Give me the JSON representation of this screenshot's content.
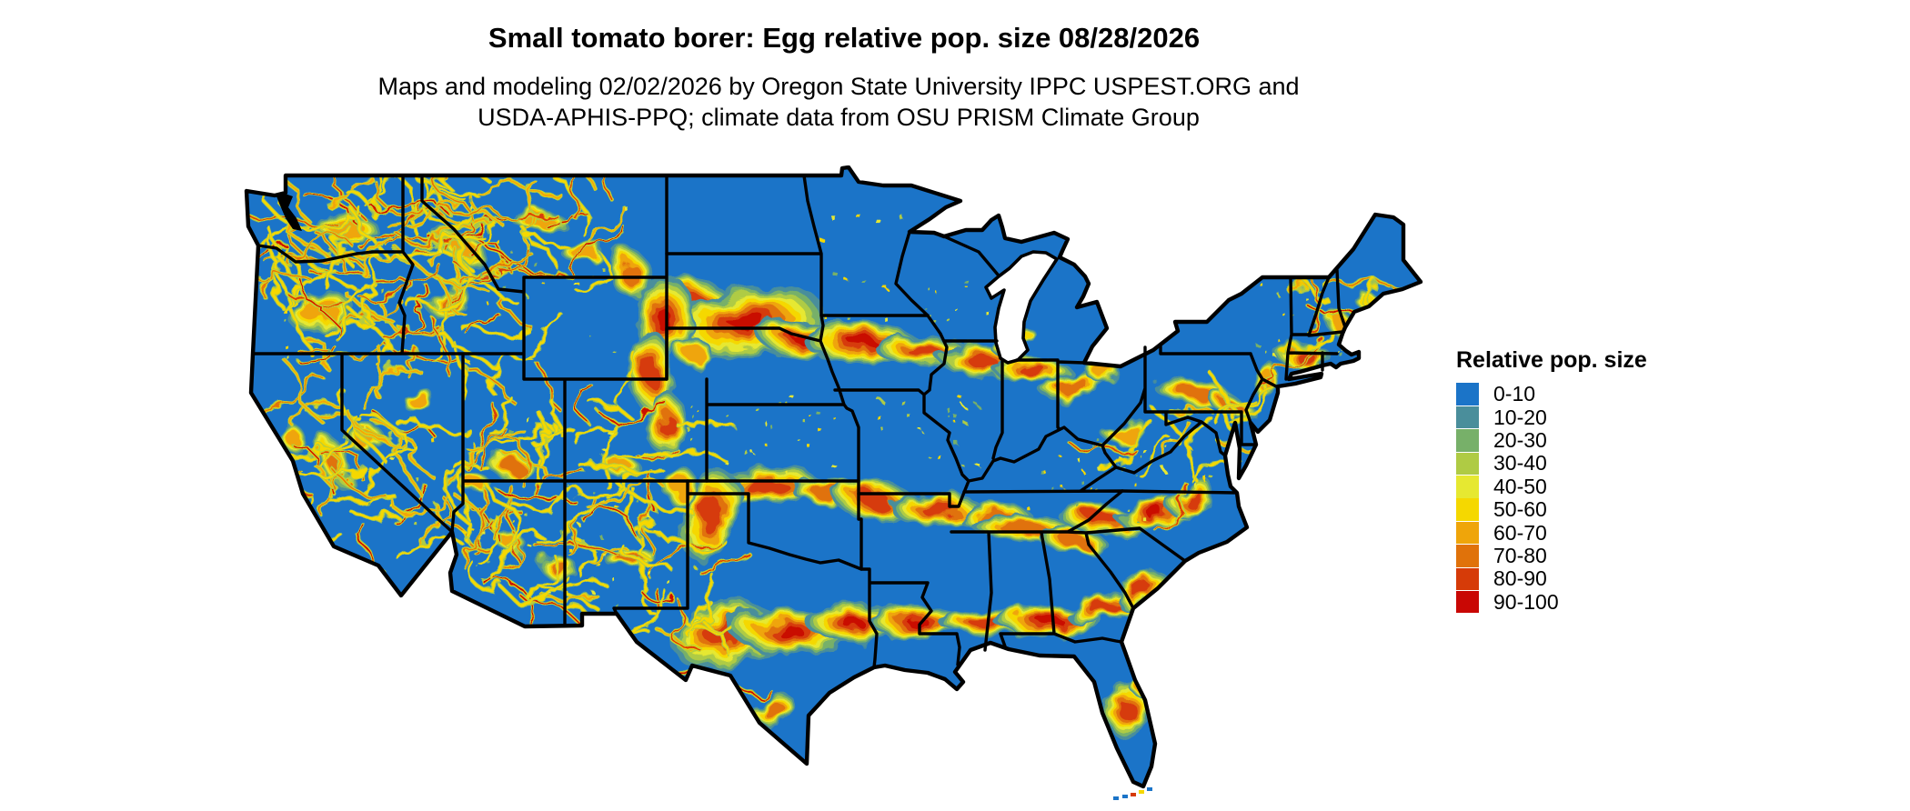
{
  "header": {
    "title": "Small tomato borer: Egg relative pop. size 08/28/2026",
    "subtitle_line1": "Maps and modeling 02/02/2026 by Oregon State University IPPC USPEST.ORG and",
    "subtitle_line2": "USDA-APHIS-PPQ; climate data from OSU PRISM Climate Group"
  },
  "legend": {
    "title": "Relative pop. size",
    "items": [
      {
        "label": "0-10",
        "color": "#1B74C8"
      },
      {
        "label": "10-20",
        "color": "#4A8E9B"
      },
      {
        "label": "20-30",
        "color": "#77B069"
      },
      {
        "label": "30-40",
        "color": "#AFCB44"
      },
      {
        "label": "40-50",
        "color": "#E6E831"
      },
      {
        "label": "50-60",
        "color": "#F5D800"
      },
      {
        "label": "60-70",
        "color": "#EFA50A"
      },
      {
        "label": "70-80",
        "color": "#E0720A"
      },
      {
        "label": "80-90",
        "color": "#D63B08"
      },
      {
        "label": "90-100",
        "color": "#C90704"
      }
    ]
  },
  "map": {
    "region": "Contiguous United States",
    "land_base_color": "#1B74C8",
    "state_border_color": "#000000",
    "water_background_color": "#FFFFFF"
  }
}
